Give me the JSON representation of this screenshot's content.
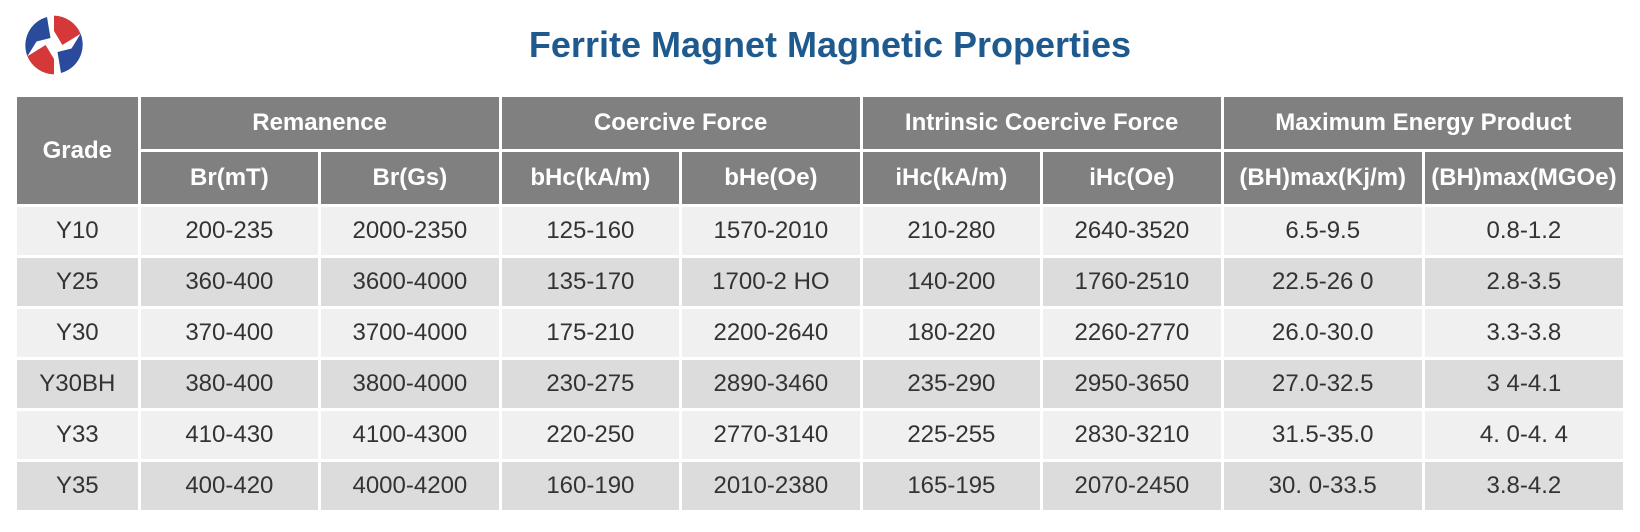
{
  "title": "Ferrite Magnet Magnetic Properties",
  "colors": {
    "title": "#1e5a8e",
    "header_bg": "#808080",
    "header_text": "#ffffff",
    "row_even_bg": "#f0f0f0",
    "row_odd_bg": "#dcdcdc",
    "cell_text": "#333333",
    "logo_red": "#d43838",
    "logo_blue": "#2a4b9b"
  },
  "table": {
    "group_headers": {
      "grade": "Grade",
      "remanence": "Remanence",
      "coercive": "Coercive Force",
      "intrinsic": "Intrinsic Coercive Force",
      "maxenergy": "Maximum Energy Product"
    },
    "sub_headers": {
      "br_mt": "Br(mT)",
      "br_gs": "Br(Gs)",
      "bhc_kam": "bHc(kA/m)",
      "bhe_oe": "bHe(Oe)",
      "ihc_kam": "iHc(kA/m)",
      "ihc_oe": "iHc(Oe)",
      "bhmax_kjm": "(BH)max(Kj/m)",
      "bhmax_mgoe": "(BH)max(MGOe)"
    },
    "rows": [
      {
        "grade": "Y10",
        "br_mt": "200-235",
        "br_gs": "2000-2350",
        "bhc_kam": "125-160",
        "bhe_oe": "1570-2010",
        "ihc_kam": "210-280",
        "ihc_oe": "2640-3520",
        "bhmax_kjm": "6.5-9.5",
        "bhmax_mgoe": "0.8-1.2"
      },
      {
        "grade": "Y25",
        "br_mt": "360-400",
        "br_gs": "3600-4000",
        "bhc_kam": "135-170",
        "bhe_oe": "1700-2 HO",
        "ihc_kam": "140-200",
        "ihc_oe": "1760-2510",
        "bhmax_kjm": "22.5-26 0",
        "bhmax_mgoe": "2.8-3.5"
      },
      {
        "grade": "Y30",
        "br_mt": "370-400",
        "br_gs": "3700-4000",
        "bhc_kam": "175-210",
        "bhe_oe": "2200-2640",
        "ihc_kam": "180-220",
        "ihc_oe": "2260-2770",
        "bhmax_kjm": "26.0-30.0",
        "bhmax_mgoe": "3.3-3.8"
      },
      {
        "grade": "Y30BH",
        "br_mt": "380-400",
        "br_gs": "3800-4000",
        "bhc_kam": "230-275",
        "bhe_oe": "2890-3460",
        "ihc_kam": "235-290",
        "ihc_oe": "2950-3650",
        "bhmax_kjm": "27.0-32.5",
        "bhmax_mgoe": "3 4-4.1"
      },
      {
        "grade": "Y33",
        "br_mt": "410-430",
        "br_gs": "4100-4300",
        "bhc_kam": "220-250",
        "bhe_oe": "2770-3140",
        "ihc_kam": "225-255",
        "ihc_oe": "2830-3210",
        "bhmax_kjm": "31.5-35.0",
        "bhmax_mgoe": "4. 0-4. 4"
      },
      {
        "grade": "Y35",
        "br_mt": "400-420",
        "br_gs": "4000-4200",
        "bhc_kam": "160-190",
        "bhe_oe": "2010-2380",
        "ihc_kam": "165-195",
        "ihc_oe": "2070-2450",
        "bhmax_kjm": "30. 0-33.5",
        "bhmax_mgoe": "3.8-4.2"
      }
    ]
  },
  "style": {
    "title_fontsize": 36,
    "header_fontsize": 24,
    "cell_fontsize": 24
  }
}
